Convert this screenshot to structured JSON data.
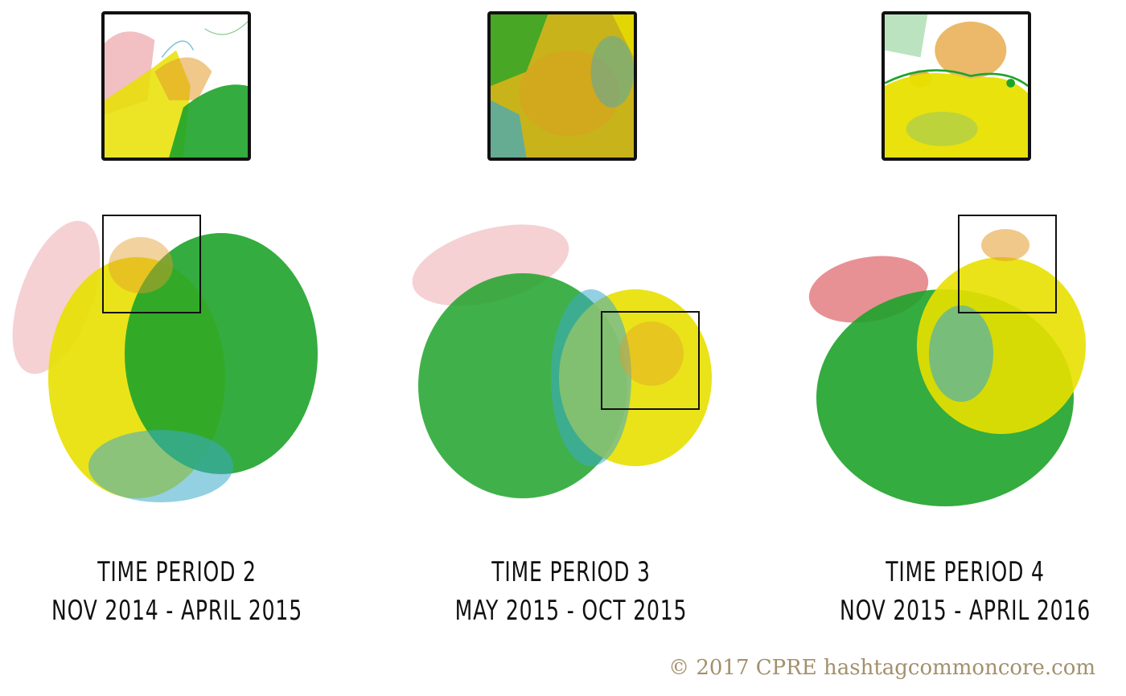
{
  "panels": [
    {
      "period": "TIME PERIOD 2",
      "dates": "NOV 2014 - APRIL 2015",
      "clusters": [
        "red",
        "yellow",
        "green",
        "blue",
        "orange"
      ]
    },
    {
      "period": "TIME PERIOD 3",
      "dates": "MAY 2015 - OCT 2015",
      "clusters": [
        "red",
        "green",
        "blue",
        "yellow",
        "orange"
      ]
    },
    {
      "period": "TIME PERIOD 4",
      "dates": "NOV 2015 - APRIL 2016",
      "clusters": [
        "red",
        "green",
        "blue",
        "yellow",
        "orange"
      ]
    }
  ],
  "copyright": "© 2017 CPRE hashtagcommoncore.com",
  "colors": {
    "red": "#d9484f",
    "yellow": "#e8e000",
    "green": "#1ea32a",
    "blue": "#3ba9c8",
    "orange": "#e39b2a",
    "frame": "#111111",
    "copyright": "#a3906c"
  }
}
